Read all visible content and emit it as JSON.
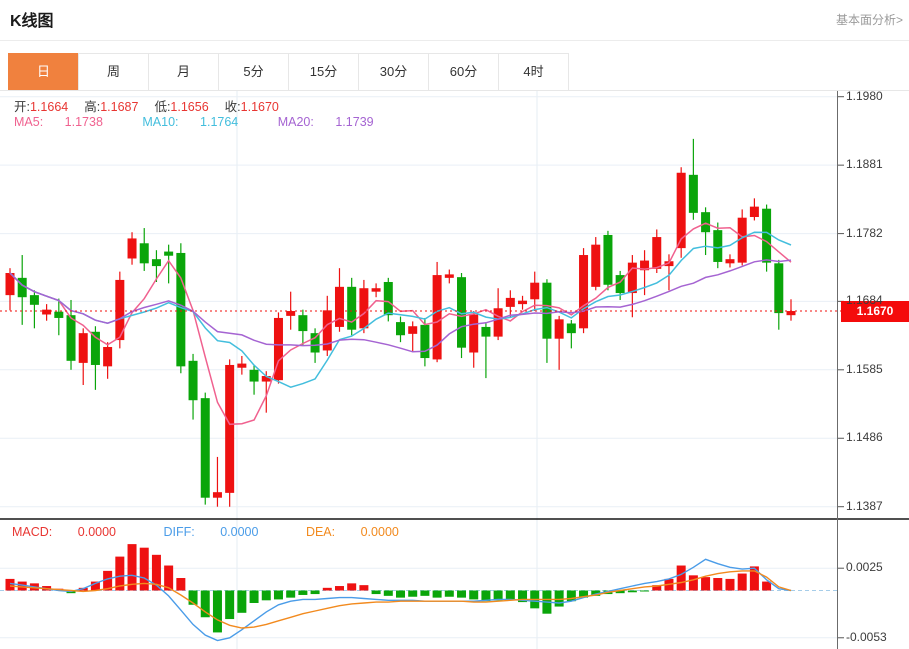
{
  "header": {
    "title": "K线图",
    "link": "基本面分析>"
  },
  "tabs": [
    {
      "label": "日",
      "active": true
    },
    {
      "label": "周",
      "active": false
    },
    {
      "label": "月",
      "active": false
    },
    {
      "label": "5分",
      "active": false
    },
    {
      "label": "15分",
      "active": false
    },
    {
      "label": "30分",
      "active": false
    },
    {
      "label": "60分",
      "active": false
    },
    {
      "label": "4时",
      "active": false
    }
  ],
  "legend_ohlc": [
    {
      "label": "开:",
      "value": "1.1664"
    },
    {
      "label": "高:",
      "value": "1.1687"
    },
    {
      "label": "低:",
      "value": "1.1656"
    },
    {
      "label": "收:",
      "value": "1.1670"
    }
  ],
  "legend_ma": [
    {
      "label": "MA5:",
      "value": "1.1738",
      "color": "#f0618f"
    },
    {
      "label": "MA10:",
      "value": "1.1764",
      "color": "#43bedd"
    },
    {
      "label": "MA20:",
      "value": "1.1739",
      "color": "#a564d2"
    }
  ],
  "macd_legend": [
    {
      "label": "MACD:",
      "value": "0.0000",
      "color": "#e83632"
    },
    {
      "label": "DIFF:",
      "value": "0.0000",
      "color": "#4a9ce8"
    },
    {
      "label": "DEA:",
      "value": "0.0000",
      "color": "#f28a1e"
    }
  ],
  "price_tag": {
    "value": "1.1670"
  },
  "chart_data": {
    "type": "candlestick+macd",
    "title": "K线图 日线",
    "x_labels": "none visible",
    "grid": true,
    "legend_position": "top-left",
    "y_ticks_main": [
      "1.1980",
      "1.1881",
      "1.1782",
      "1.1684",
      "1.1585",
      "1.1486",
      "1.1387"
    ],
    "y_ticks_macd": [
      "0.0025",
      "-0.0053"
    ],
    "current_price": 1.167,
    "ma_periods": [
      5,
      10,
      20
    ],
    "colors": {
      "up": "#ee1111",
      "down": "#0aa50a",
      "ma5": "#f0618f",
      "ma10": "#43bedd",
      "ma20": "#a564d2",
      "diff": "#4a9ce8",
      "dea": "#f28a1e",
      "grid": "#e9eff6",
      "vgrid": "#e4ecf3",
      "axis": "#6b6b6b",
      "price_line": "#f2100c",
      "zero_line": "#a6cde9",
      "separator": "#161616",
      "tab_active": "#f0813e"
    },
    "candles_ohlc": [
      [
        1.1693,
        1.1732,
        1.1671,
        1.1725
      ],
      [
        1.1718,
        1.1751,
        1.165,
        1.169
      ],
      [
        1.1693,
        1.17,
        1.1645,
        1.1679
      ],
      [
        1.1665,
        1.168,
        1.1656,
        1.1672
      ],
      [
        1.1669,
        1.1688,
        1.1635,
        1.166
      ],
      [
        1.1664,
        1.1686,
        1.1585,
        1.1598
      ],
      [
        1.1595,
        1.1645,
        1.1563,
        1.1638
      ],
      [
        1.164,
        1.1648,
        1.1556,
        1.1592
      ],
      [
        1.159,
        1.1625,
        1.1572,
        1.1618
      ],
      [
        1.1628,
        1.1727,
        1.1616,
        1.1715
      ],
      [
        1.1746,
        1.1784,
        1.1737,
        1.1775
      ],
      [
        1.1768,
        1.179,
        1.1728,
        1.1739
      ],
      [
        1.1745,
        1.1758,
        1.1712,
        1.1735
      ],
      [
        1.1756,
        1.1766,
        1.171,
        1.175
      ],
      [
        1.1754,
        1.1768,
        1.158,
        1.159
      ],
      [
        1.1598,
        1.1608,
        1.1513,
        1.1541
      ],
      [
        1.1544,
        1.1552,
        1.139,
        1.14
      ],
      [
        1.14,
        1.1459,
        1.1387,
        1.1408
      ],
      [
        1.1407,
        1.16,
        1.1387,
        1.1592
      ],
      [
        1.1588,
        1.1605,
        1.1578,
        1.1594
      ],
      [
        1.1585,
        1.1592,
        1.1549,
        1.1568
      ],
      [
        1.1568,
        1.1583,
        1.1523,
        1.1576
      ],
      [
        1.157,
        1.1668,
        1.1565,
        1.166
      ],
      [
        1.1663,
        1.1698,
        1.1643,
        1.167
      ],
      [
        1.1664,
        1.1672,
        1.162,
        1.1641
      ],
      [
        1.1638,
        1.1645,
        1.1595,
        1.161
      ],
      [
        1.1613,
        1.1692,
        1.1605,
        1.1671
      ],
      [
        1.1647,
        1.1732,
        1.164,
        1.1705
      ],
      [
        1.1705,
        1.1718,
        1.1635,
        1.1643
      ],
      [
        1.1645,
        1.1715,
        1.1638,
        1.1703
      ],
      [
        1.1698,
        1.171,
        1.169,
        1.1703
      ],
      [
        1.1712,
        1.1718,
        1.1655,
        1.1664
      ],
      [
        1.1654,
        1.1662,
        1.1625,
        1.1635
      ],
      [
        1.1637,
        1.1655,
        1.1611,
        1.1648
      ],
      [
        1.165,
        1.166,
        1.159,
        1.1602
      ],
      [
        1.16,
        1.1741,
        1.1596,
        1.1722
      ],
      [
        1.1718,
        1.173,
        1.171,
        1.1723
      ],
      [
        1.1719,
        1.1725,
        1.1602,
        1.1617
      ],
      [
        1.161,
        1.167,
        1.1588,
        1.1665
      ],
      [
        1.1647,
        1.1652,
        1.1573,
        1.1633
      ],
      [
        1.1633,
        1.1703,
        1.1628,
        1.1674
      ],
      [
        1.1676,
        1.17,
        1.166,
        1.1689
      ],
      [
        1.168,
        1.1692,
        1.1672,
        1.1685
      ],
      [
        1.1687,
        1.1727,
        1.167,
        1.1711
      ],
      [
        1.1711,
        1.1716,
        1.1595,
        1.163
      ],
      [
        1.163,
        1.1663,
        1.1585,
        1.1658
      ],
      [
        1.1652,
        1.1657,
        1.1616,
        1.1638
      ],
      [
        1.1645,
        1.1761,
        1.1638,
        1.1751
      ],
      [
        1.1705,
        1.1777,
        1.17,
        1.1766
      ],
      [
        1.178,
        1.1786,
        1.17,
        1.1708
      ],
      [
        1.1722,
        1.1728,
        1.1686,
        1.1696
      ],
      [
        1.1696,
        1.1751,
        1.1661,
        1.174
      ],
      [
        1.1729,
        1.1758,
        1.1693,
        1.1743
      ],
      [
        1.1731,
        1.1788,
        1.1725,
        1.1777
      ],
      [
        1.1735,
        1.1752,
        1.17,
        1.1742
      ],
      [
        1.1761,
        1.1878,
        1.1747,
        1.187
      ],
      [
        1.1867,
        1.1919,
        1.1802,
        1.1812
      ],
      [
        1.1813,
        1.182,
        1.1751,
        1.1784
      ],
      [
        1.1787,
        1.1798,
        1.1732,
        1.1741
      ],
      [
        1.1739,
        1.1752,
        1.1733,
        1.1745
      ],
      [
        1.174,
        1.1817,
        1.1736,
        1.1805
      ],
      [
        1.1806,
        1.1833,
        1.1801,
        1.1821
      ],
      [
        1.1818,
        1.1824,
        1.1727,
        1.174
      ],
      [
        1.1739,
        1.1744,
        1.1643,
        1.1667
      ],
      [
        1.1664,
        1.1687,
        1.1656,
        1.167
      ]
    ],
    "macd_hist": [
      0.0013,
      0.001,
      0.0008,
      0.0005,
      0.0002,
      -0.0003,
      0.0003,
      0.001,
      0.0022,
      0.0038,
      0.0052,
      0.0048,
      0.004,
      0.0028,
      0.0014,
      -0.0016,
      -0.003,
      -0.0047,
      -0.0032,
      -0.0025,
      -0.0014,
      -0.0011,
      -0.001,
      -0.0008,
      -0.0005,
      -0.0004,
      0.0003,
      0.0005,
      0.0008,
      0.0006,
      -0.0004,
      -0.0006,
      -0.0008,
      -0.0007,
      -0.0006,
      -0.0008,
      -0.0007,
      -0.0008,
      -0.001,
      -0.0012,
      -0.0011,
      -0.001,
      -0.0013,
      -0.002,
      -0.0026,
      -0.0018,
      -0.0012,
      -0.0008,
      -0.0006,
      -0.0004,
      -0.0003,
      -0.0002,
      -0.0001,
      0.0006,
      0.0013,
      0.0028,
      0.0017,
      0.0015,
      0.0014,
      0.0013,
      0.0019,
      0.0027,
      0.001,
      0.0,
      0.0
    ],
    "diff_line": [
      0.0008,
      0.0006,
      0.0004,
      0.0002,
      0.0,
      -0.0001,
      0.0002,
      0.0008,
      0.0013,
      0.0016,
      0.0017,
      0.0014,
      0.0006,
      -0.0006,
      -0.0022,
      -0.0038,
      -0.005,
      -0.0056,
      -0.0053,
      -0.0044,
      -0.0034,
      -0.0024,
      -0.0016,
      -0.0012,
      -0.001,
      -0.001,
      -0.0009,
      -0.0008,
      -0.0008,
      -0.0009,
      -0.001,
      -0.0011,
      -0.0011,
      -0.0011,
      -0.0012,
      -0.0012,
      -0.0012,
      -0.0012,
      -0.0012,
      -0.0011,
      -0.001,
      -0.001,
      -0.0011,
      -0.0012,
      -0.0013,
      -0.0014,
      -0.0012,
      -0.0008,
      -0.0004,
      -0.0001,
      0.0002,
      0.0005,
      0.0008,
      0.001,
      0.0013,
      0.0018,
      0.0026,
      0.0035,
      0.003,
      0.0026,
      0.0024,
      0.0025,
      0.0012,
      0.0002,
      0.0
    ],
    "dea_line": [
      0.0005,
      0.0004,
      0.0003,
      0.0002,
      0.0001,
      0.0,
      -0.0001,
      0.0,
      0.0002,
      0.0005,
      0.0007,
      0.0008,
      0.0007,
      0.0003,
      -0.0005,
      -0.0014,
      -0.0024,
      -0.0033,
      -0.0039,
      -0.0042,
      -0.0041,
      -0.0038,
      -0.0034,
      -0.003,
      -0.0026,
      -0.0023,
      -0.002,
      -0.0017,
      -0.0015,
      -0.0014,
      -0.0013,
      -0.0013,
      -0.0012,
      -0.0012,
      -0.0012,
      -0.0012,
      -0.0012,
      -0.0012,
      -0.0013,
      -0.0013,
      -0.0012,
      -0.0011,
      -0.001,
      -0.001,
      -0.001,
      -0.001,
      -0.0009,
      -0.0007,
      -0.0005,
      -0.0002,
      0.0,
      0.0002,
      0.0004,
      0.0005,
      0.0007,
      0.0009,
      0.0012,
      0.0016,
      0.0019,
      0.0021,
      0.0022,
      0.0022,
      0.0015,
      0.0004,
      0.0
    ]
  }
}
